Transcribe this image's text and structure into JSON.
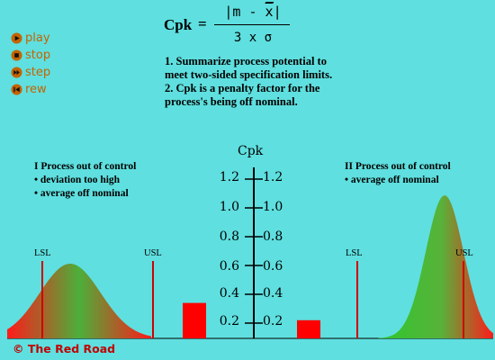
{
  "controls": [
    {
      "id": "play",
      "label": "play",
      "icon": "play-icon"
    },
    {
      "id": "stop",
      "label": "stop",
      "icon": "stop-icon"
    },
    {
      "id": "step",
      "label": "step",
      "icon": "step-icon"
    },
    {
      "id": "rew",
      "label": "rew",
      "icon": "rewind-icon"
    }
  ],
  "formula": {
    "label": "Cpk",
    "equals": "=",
    "numerator": "|m - x|",
    "denominator": "3 x σ"
  },
  "notes": [
    "1. Summarize process potential to meet two-sided specification limits.",
    "2. Cpk is a penalty factor for the process's being off nominal."
  ],
  "axis": {
    "title": "Cpk",
    "ticks": [
      "1.2",
      "1.0",
      "0.8",
      "0.6",
      "0.4",
      "0.2"
    ]
  },
  "panel_left": {
    "title": "I  Process out of control",
    "items": [
      "• deviation too high",
      "• average off nominal"
    ],
    "lsl": "LSL",
    "usl": "USL",
    "cpk_value": 0.34
  },
  "panel_right": {
    "title": "II  Process out of control",
    "items": [
      "• average off nominal"
    ],
    "lsl": "LSL",
    "usl": "USL",
    "cpk_value": 0.22
  },
  "footer": "© The Red Road",
  "colors": {
    "background": "#5fdfdf",
    "bar": "#ff0000",
    "spec_line": "#d00000",
    "control_icon": "#c46400",
    "footer": "#c00000"
  }
}
